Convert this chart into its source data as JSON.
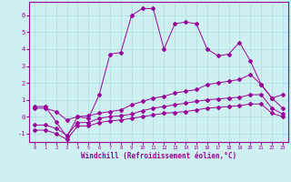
{
  "xlabel": "Windchill (Refroidissement éolien,°C)",
  "background_color": "#cff0f0",
  "line_color": "#990099",
  "grid_color": "#aadddd",
  "xlim": [
    -0.5,
    23.5
  ],
  "ylim": [
    -1.5,
    6.8
  ],
  "xticks": [
    0,
    1,
    2,
    3,
    4,
    5,
    6,
    7,
    8,
    9,
    10,
    11,
    12,
    13,
    14,
    15,
    16,
    17,
    18,
    19,
    20,
    21,
    22,
    23
  ],
  "yticks": [
    -1,
    0,
    1,
    2,
    3,
    4,
    5,
    6
  ],
  "line1_x": [
    0,
    1,
    2,
    3,
    4,
    5,
    6,
    7,
    8,
    9,
    10,
    11,
    12,
    13,
    14,
    15,
    16,
    17,
    18,
    19,
    20,
    21,
    22,
    23
  ],
  "line1_y": [
    0.6,
    0.6,
    -0.3,
    -1.2,
    0.0,
    -0.1,
    1.3,
    3.7,
    3.8,
    6.0,
    6.4,
    6.4,
    4.0,
    5.5,
    5.6,
    5.5,
    4.0,
    3.6,
    3.7,
    4.4,
    3.3,
    1.9,
    1.1,
    1.3
  ],
  "line2_x": [
    0,
    1,
    2,
    3,
    4,
    5,
    6,
    7,
    8,
    9,
    10,
    11,
    12,
    13,
    14,
    15,
    16,
    17,
    18,
    19,
    20,
    21,
    22,
    23
  ],
  "line2_y": [
    0.5,
    0.5,
    0.3,
    -0.2,
    0.0,
    0.05,
    0.2,
    0.3,
    0.4,
    0.7,
    0.9,
    1.1,
    1.2,
    1.4,
    1.5,
    1.6,
    1.9,
    2.0,
    2.1,
    2.2,
    2.5,
    1.9,
    1.1,
    0.5
  ],
  "line3_x": [
    0,
    1,
    2,
    3,
    4,
    5,
    6,
    7,
    8,
    9,
    10,
    11,
    12,
    13,
    14,
    15,
    16,
    17,
    18,
    19,
    20,
    21,
    22,
    23
  ],
  "line3_y": [
    -0.5,
    -0.5,
    -0.7,
    -1.1,
    -0.35,
    -0.35,
    -0.1,
    0.0,
    0.05,
    0.15,
    0.35,
    0.5,
    0.6,
    0.7,
    0.8,
    0.9,
    1.0,
    1.05,
    1.1,
    1.15,
    1.3,
    1.3,
    0.5,
    0.15
  ],
  "line4_x": [
    0,
    1,
    2,
    3,
    4,
    5,
    6,
    7,
    8,
    9,
    10,
    11,
    12,
    13,
    14,
    15,
    16,
    17,
    18,
    19,
    20,
    21,
    22,
    23
  ],
  "line4_y": [
    -0.8,
    -0.8,
    -1.0,
    -1.35,
    -0.55,
    -0.55,
    -0.35,
    -0.25,
    -0.2,
    -0.1,
    0.0,
    0.1,
    0.2,
    0.25,
    0.3,
    0.4,
    0.5,
    0.55,
    0.6,
    0.65,
    0.75,
    0.75,
    0.2,
    0.0
  ]
}
